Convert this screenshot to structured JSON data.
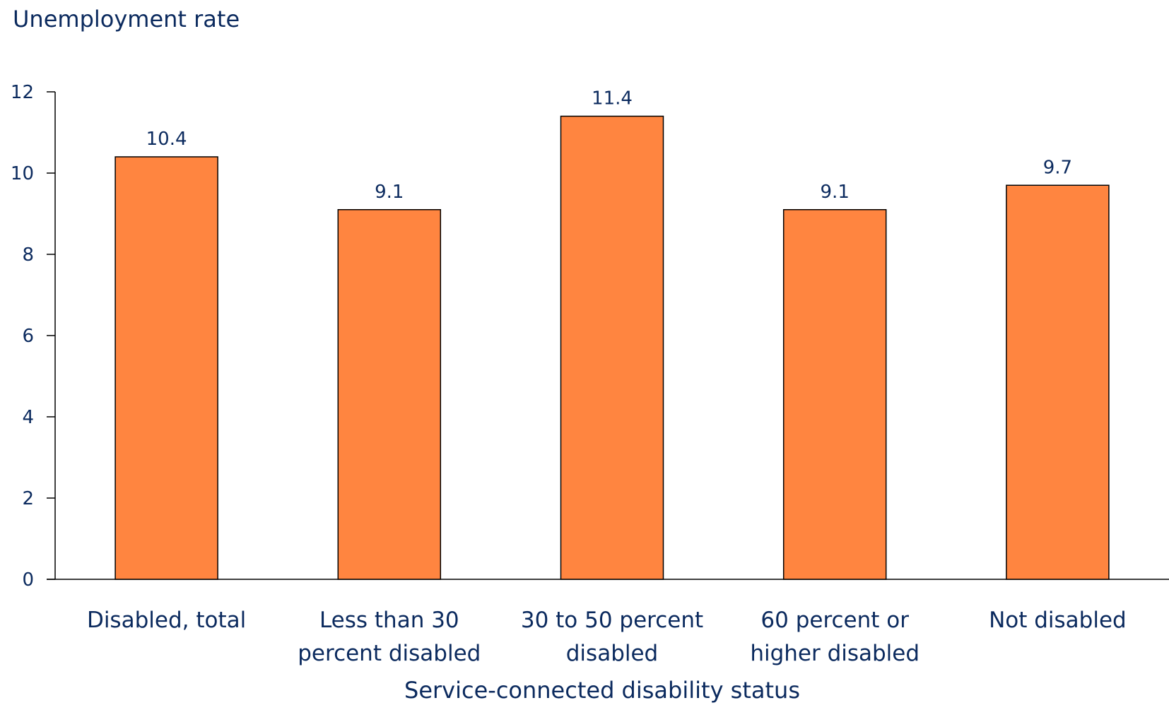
{
  "chart_data": {
    "type": "bar",
    "ylabel": "Unemployment rate",
    "xlabel": "Service-connected disability status",
    "categories": [
      [
        "Disabled, total"
      ],
      [
        "Less than 30",
        "percent disabled"
      ],
      [
        "30 to 50 percent",
        "disabled"
      ],
      [
        "60 percent or",
        "higher disabled"
      ],
      [
        "Not disabled"
      ]
    ],
    "values": [
      10.4,
      9.1,
      11.4,
      9.1,
      9.7
    ],
    "data_labels": [
      "10.4",
      "9.1",
      "11.4",
      "9.1",
      "9.7"
    ],
    "ylim": [
      0,
      12
    ],
    "yticks": [
      "0",
      "2",
      "4",
      "6",
      "8",
      "10",
      "12"
    ],
    "grid": false,
    "legend": "none",
    "colors": {
      "bar": "#ff8540",
      "text": "#0b2a5e",
      "axis": "#000000"
    }
  }
}
